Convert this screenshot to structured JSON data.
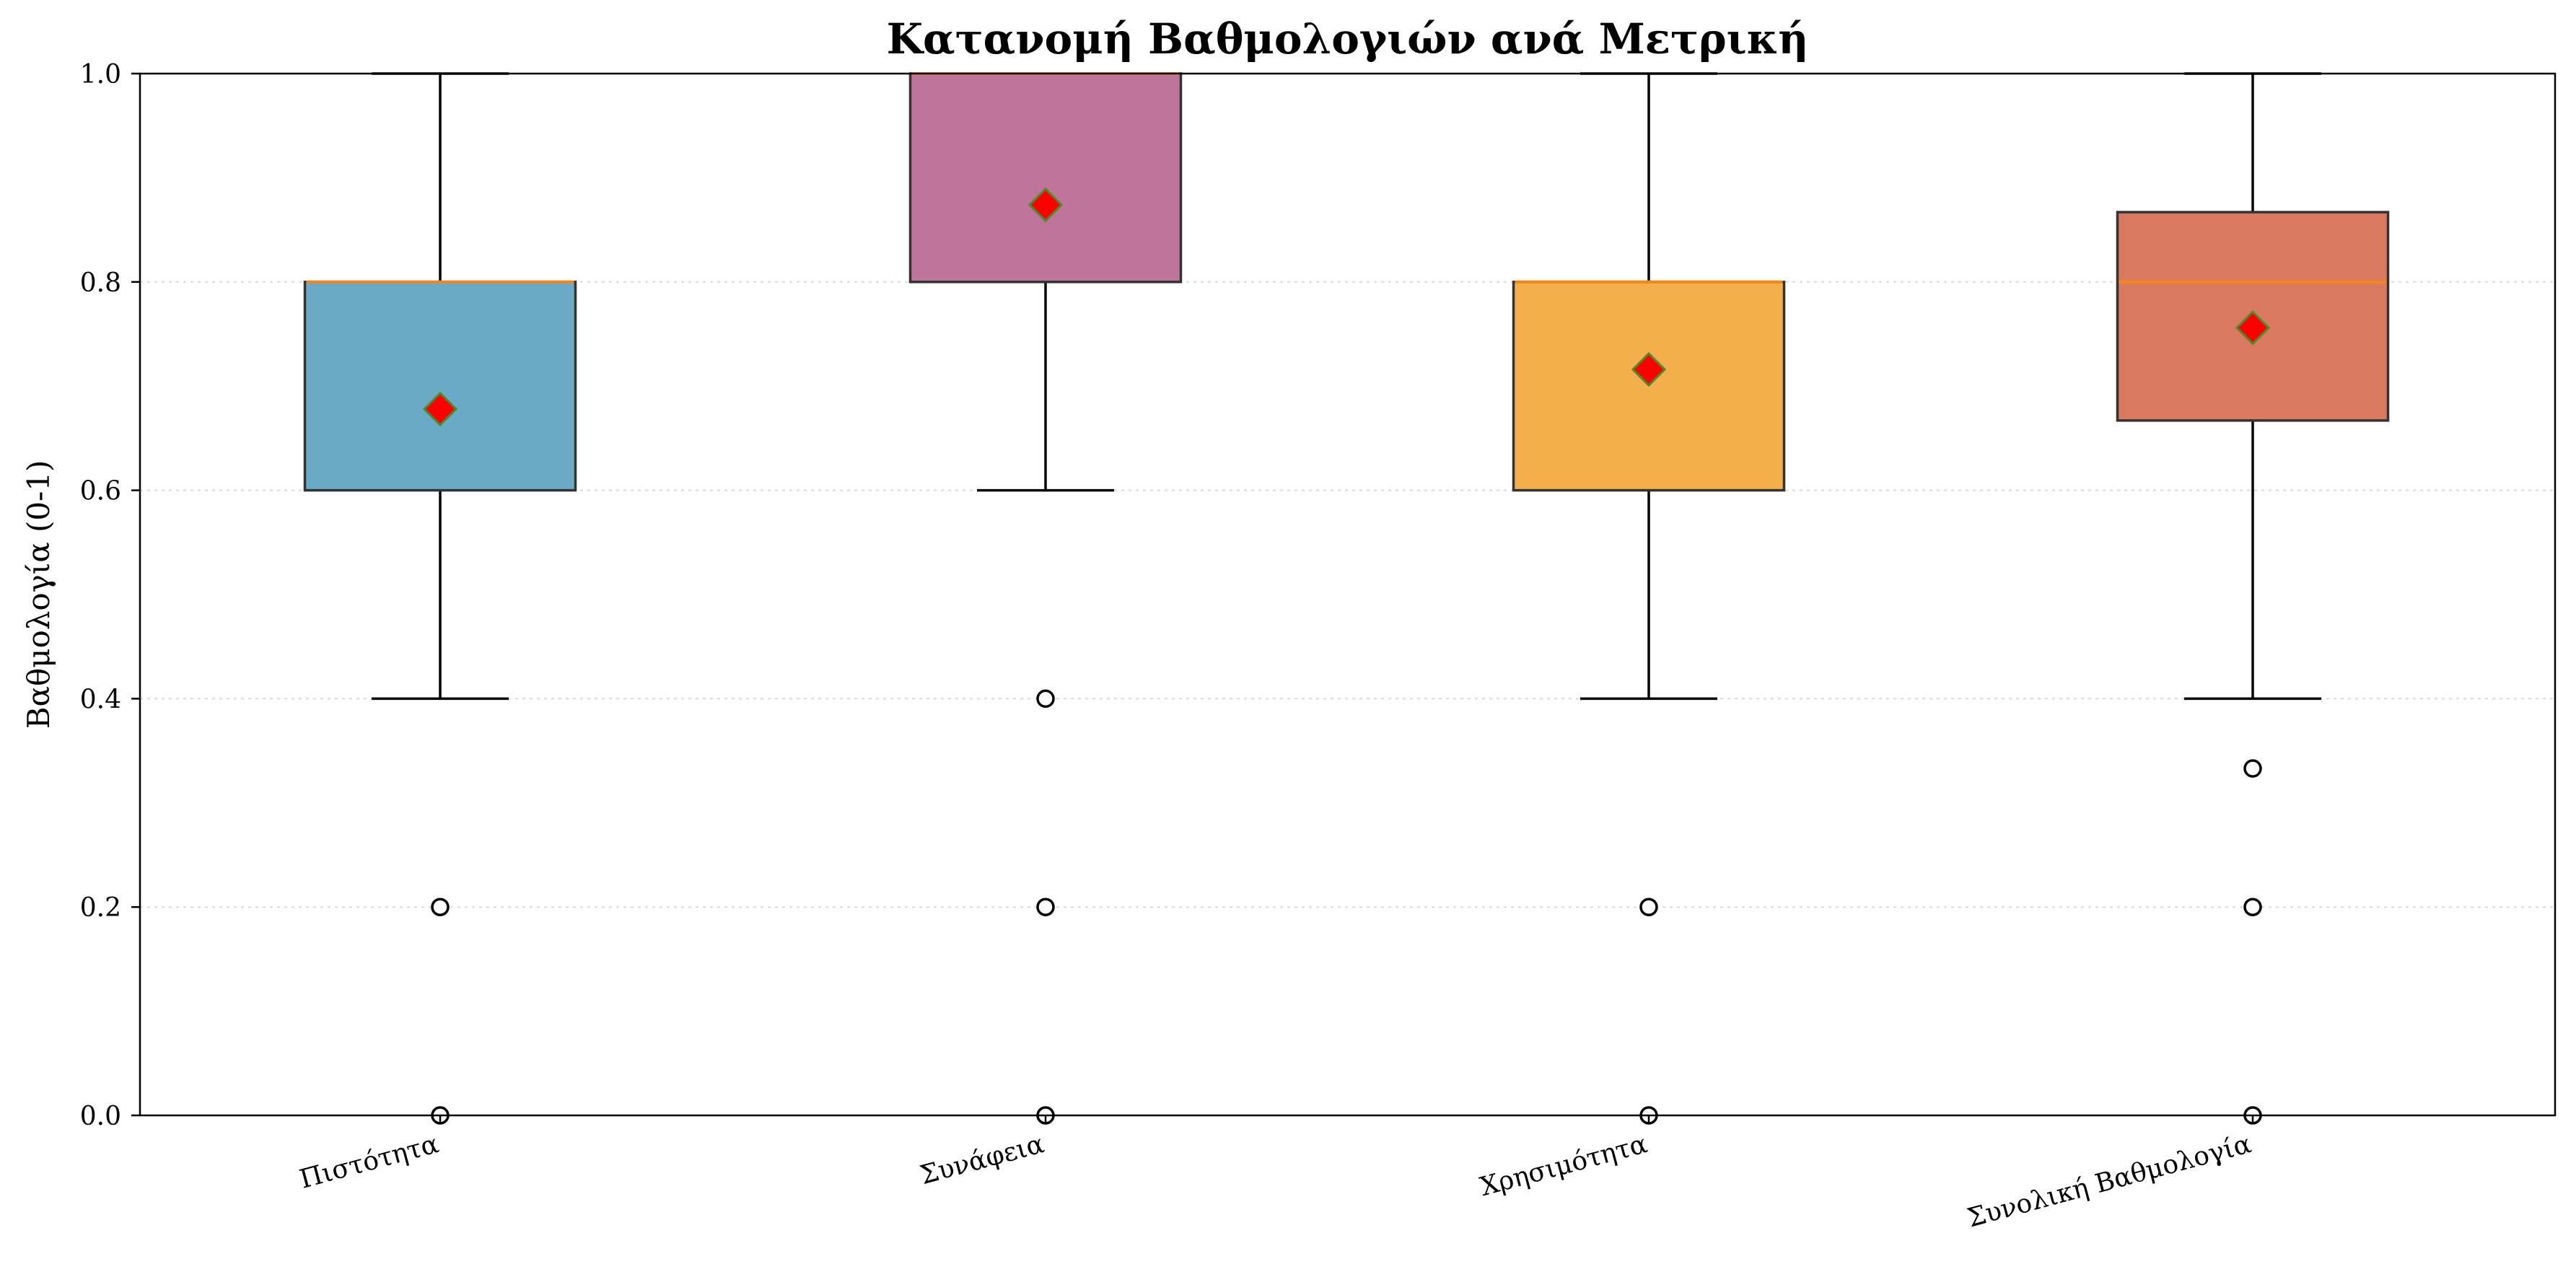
{
  "chart_data": {
    "type": "box",
    "title": "Κατανομή Βαθμολογιών ανά Μετρική",
    "xlabel": "",
    "ylabel": "Βαθμολογία (0-1)",
    "ylim": [
      0.0,
      1.0
    ],
    "yticks": [
      "0.0",
      "0.2",
      "0.4",
      "0.6",
      "0.8",
      "1.0"
    ],
    "ytick_values": [
      0.0,
      0.2,
      0.4,
      0.6,
      0.8,
      1.0
    ],
    "grid": "horizontal dotted",
    "legend": "none",
    "median_color": "#f58518",
    "mean_marker_color": "#ff0000",
    "mean_marker_edge": "#4a8a2a",
    "categories": [
      "Πιστότητα",
      "Συνάφεια",
      "Χρησιμότητα",
      "Συνολική Βαθμολογία"
    ],
    "boxes": [
      {
        "name": "Πιστότητα",
        "color": "#6aaac6",
        "whisker_low": 0.4,
        "q1": 0.6,
        "median": 0.8,
        "q3": 0.8,
        "whisker_high": 1.0,
        "mean": 0.678,
        "outliers": [
          0.2,
          0.0
        ]
      },
      {
        "name": "Συνάφεια",
        "color": "#be7599",
        "whisker_low": 0.6,
        "q1": 0.8,
        "median": 1.0,
        "q3": 1.0,
        "whisker_high": 1.0,
        "mean": 0.874,
        "outliers": [
          0.4,
          0.2,
          0.0
        ]
      },
      {
        "name": "Χρησιμότητα",
        "color": "#f5ae4c",
        "whisker_low": 0.4,
        "q1": 0.6,
        "median": 0.8,
        "q3": 0.8,
        "whisker_high": 1.0,
        "mean": 0.716,
        "outliers": [
          0.2,
          0.0
        ]
      },
      {
        "name": "Συνολική Βαθμολογία",
        "color": "#d97960",
        "whisker_low": 0.4,
        "q1": 0.667,
        "median": 0.8,
        "q3": 0.867,
        "whisker_high": 1.0,
        "mean": 0.756,
        "outliers": [
          0.333,
          0.2,
          0.0
        ]
      }
    ]
  }
}
